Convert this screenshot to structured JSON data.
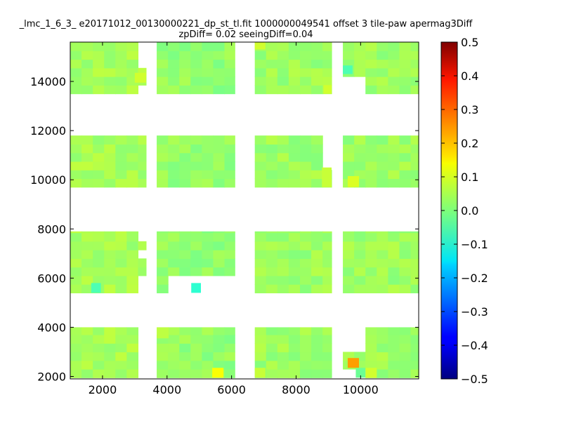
{
  "chart_data": {
    "type": "heatmap",
    "title_line1": "_lmc_1_6_3_ e20171012_00130000221_dp_st_tl.fit 1000000049541 offset 3 tile-paw apermag3Diff",
    "title_line2": "zpDiff= 0.02 seeingDiff=0.04",
    "xlim": [
      1000,
      11800
    ],
    "ylim": [
      1900,
      15600
    ],
    "x_ticks": [
      2000,
      4000,
      6000,
      8000,
      10000
    ],
    "y_ticks": [
      2000,
      4000,
      6000,
      8000,
      10000,
      12000,
      14000
    ],
    "colorbar": {
      "colormap": "jet",
      "vmin": -0.5,
      "vmax": 0.5,
      "ticks": [
        0.5,
        0.4,
        0.3,
        0.2,
        0.1,
        0.0,
        -0.1,
        -0.2,
        -0.3,
        -0.4,
        -0.5
      ],
      "tick_labels": [
        "0.5",
        "0.4",
        "0.3",
        "0.2",
        "0.1",
        "0.0",
        "−0.1",
        "−0.2",
        "−0.3",
        "−0.4",
        "−0.5"
      ]
    },
    "grid": false,
    "columns": [
      {
        "x_range": [
          1000,
          3350
        ],
        "baseline": 0.04
      },
      {
        "x_range": [
          3680,
          6100
        ],
        "baseline": 0.02
      },
      {
        "x_range": [
          6720,
          9100
        ],
        "baseline": 0.03
      },
      {
        "x_range": [
          9450,
          11800
        ],
        "baseline": 0.03
      }
    ],
    "bands": [
      {
        "y_range": [
          1950,
          4000
        ]
      },
      {
        "y_range": [
          5400,
          7900
        ]
      },
      {
        "y_range": [
          9700,
          11800
        ]
      },
      {
        "y_range": [
          13500,
          15600
        ]
      }
    ],
    "empty_regions": [
      {
        "x": [
          3000,
          3350
        ],
        "y": [
          1950,
          4000
        ]
      },
      {
        "x": [
          3680,
          4050
        ],
        "y": [
          3550,
          4000
        ]
      },
      {
        "x": [
          3000,
          3350
        ],
        "y": [
          5400,
          6200
        ]
      },
      {
        "x": [
          3000,
          3350
        ],
        "y": [
          6650,
          7050
        ]
      },
      {
        "x": [
          3000,
          3350
        ],
        "y": [
          7500,
          7900
        ]
      },
      {
        "x": [
          4050,
          6100
        ],
        "y": [
          5400,
          6000
        ]
      },
      {
        "x": [
          8800,
          9100
        ],
        "y": [
          10500,
          11800
        ]
      },
      {
        "x": [
          9450,
          10000
        ],
        "y": [
          1950,
          2350
        ]
      },
      {
        "x": [
          9450,
          10000
        ],
        "y": [
          3050,
          4000
        ]
      },
      {
        "x": [
          3000,
          3350
        ],
        "y": [
          14500,
          15600
        ]
      },
      {
        "x": [
          3000,
          3350
        ],
        "y": [
          13500,
          14000
        ]
      },
      {
        "x": [
          9450,
          10000
        ],
        "y": [
          13500,
          14300
        ]
      }
    ],
    "highlights": [
      {
        "x": [
          5400,
          5750
        ],
        "y": [
          1950,
          2350
        ],
        "value": 0.12
      },
      {
        "x": [
          9600,
          9950
        ],
        "y": [
          2350,
          2750
        ],
        "value": 0.22
      },
      {
        "x": [
          9600,
          9950
        ],
        "y": [
          9700,
          10150
        ],
        "value": 0.09
      },
      {
        "x": [
          10150,
          10500
        ],
        "y": [
          1950,
          2350
        ],
        "value": 0.08
      },
      {
        "x": [
          9850,
          10150
        ],
        "y": [
          1950,
          2350
        ],
        "value": -0.02
      },
      {
        "x": [
          4750,
          5050
        ],
        "y": [
          5400,
          5800
        ],
        "value": -0.08
      },
      {
        "x": [
          1650,
          1950
        ],
        "y": [
          5400,
          5800
        ],
        "value": -0.05
      },
      {
        "x": [
          3000,
          3350
        ],
        "y": [
          13950,
          14350
        ],
        "value": 0.08
      },
      {
        "x": [
          8850,
          9100
        ],
        "y": [
          13500,
          13850
        ],
        "value": 0.08
      },
      {
        "x": [
          6720,
          7050
        ],
        "y": [
          15300,
          15600
        ],
        "value": 0.08
      },
      {
        "x": [
          8800,
          9100
        ],
        "y": [
          9700,
          10500
        ],
        "value": 0.07
      },
      {
        "x": [
          9450,
          9750
        ],
        "y": [
          14300,
          14650
        ],
        "value": -0.05
      },
      {
        "x": [
          6720,
          7050
        ],
        "y": [
          1950,
          2350
        ],
        "value": 0.07
      },
      {
        "x": [
          3680,
          4050
        ],
        "y": [
          3550,
          4000
        ],
        "value": 0.06
      }
    ],
    "variation_seed": 7
  }
}
